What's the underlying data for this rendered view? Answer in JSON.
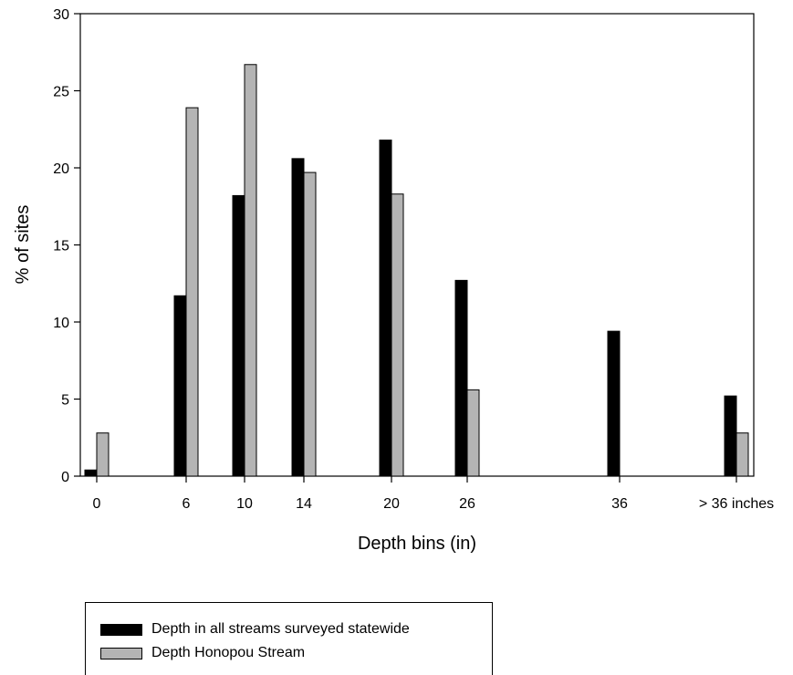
{
  "chart_data": {
    "type": "bar",
    "xlabel": "Depth bins (in)",
    "ylabel": "% of sites",
    "ylim": [
      0,
      30
    ],
    "yticks": [
      0,
      5,
      10,
      15,
      20,
      25,
      30
    ],
    "categories": [
      "0",
      "6",
      "10",
      "14",
      "20",
      "26",
      "36",
      "> 36 inches"
    ],
    "series": [
      {
        "name": "Depth in all streams surveyed statewide",
        "color": "#000000",
        "values": [
          0.4,
          11.7,
          18.2,
          20.6,
          21.8,
          12.7,
          9.4,
          5.2
        ]
      },
      {
        "name": "Depth Honopou Stream",
        "color": "#b4b4b4",
        "values": [
          2.8,
          23.9,
          26.7,
          19.7,
          18.3,
          5.6,
          0,
          2.8
        ]
      }
    ],
    "legend_position": "bottom-left"
  }
}
